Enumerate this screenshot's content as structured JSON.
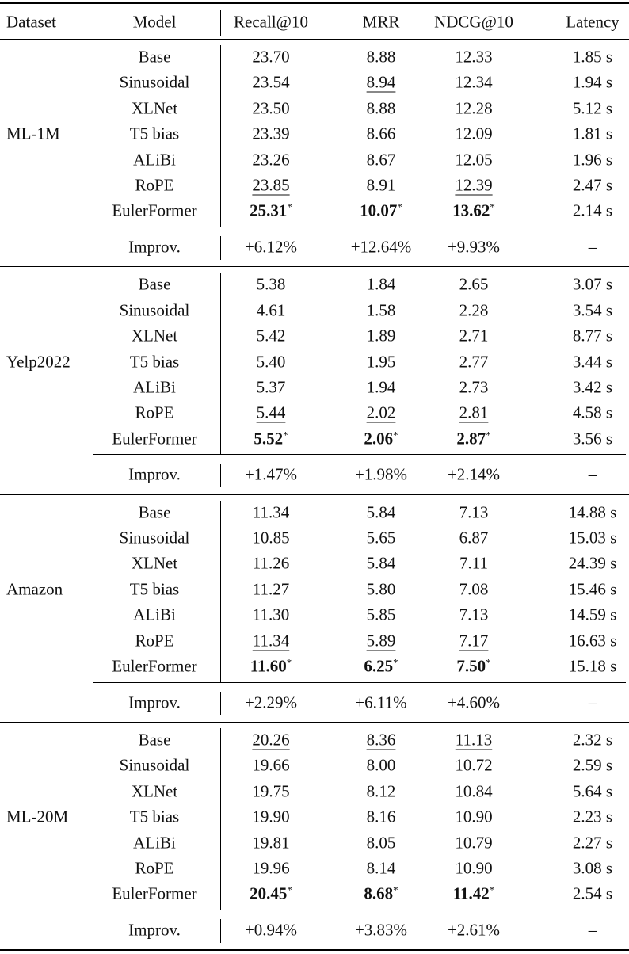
{
  "table": {
    "header": [
      "Dataset",
      "Model",
      "Recall@10",
      "MRR",
      "NDCG@10",
      "Latency"
    ],
    "groups": [
      {
        "dataset": "ML-1M",
        "rows": [
          [
            "Base",
            "23.70",
            "8.88",
            "12.33",
            "1.85 s"
          ],
          [
            "Sinusoidal",
            "23.54",
            {
              "text": "8.94",
              "underline": true
            },
            "12.34",
            "1.94 s"
          ],
          [
            "XLNet",
            "23.50",
            "8.88",
            "12.28",
            "5.12 s"
          ],
          [
            "T5 bias",
            "23.39",
            "8.66",
            "12.09",
            "1.81 s"
          ],
          [
            "ALiBi",
            "23.26",
            "8.67",
            "12.05",
            "1.96 s"
          ],
          [
            "RoPE",
            {
              "text": "23.85",
              "underline": true
            },
            "8.91",
            {
              "text": "12.39",
              "underline": true
            },
            "2.47 s"
          ],
          [
            "EulerFormer",
            {
              "text": "25.31",
              "bold": true,
              "mark": "*"
            },
            {
              "text": "10.07",
              "bold": true,
              "mark": "*"
            },
            {
              "text": "13.62",
              "bold": true,
              "mark": "*"
            },
            "2.14 s"
          ]
        ],
        "improv": [
          "Improv.",
          "+6.12%",
          "+12.64%",
          "+9.93%",
          "–"
        ]
      },
      {
        "dataset": "Yelp2022",
        "rows": [
          [
            "Base",
            "5.38",
            "1.84",
            "2.65",
            "3.07 s"
          ],
          [
            "Sinusoidal",
            "4.61",
            "1.58",
            "2.28",
            "3.54 s"
          ],
          [
            "XLNet",
            "5.42",
            "1.89",
            "2.71",
            "8.77 s"
          ],
          [
            "T5 bias",
            "5.40",
            "1.95",
            "2.77",
            "3.44 s"
          ],
          [
            "ALiBi",
            "5.37",
            "1.94",
            "2.73",
            "3.42 s"
          ],
          [
            "RoPE",
            {
              "text": "5.44",
              "underline": true
            },
            {
              "text": "2.02",
              "underline": true
            },
            {
              "text": "2.81",
              "underline": true
            },
            "4.58 s"
          ],
          [
            "EulerFormer",
            {
              "text": "5.52",
              "bold": true,
              "mark": "*"
            },
            {
              "text": "2.06",
              "bold": true,
              "mark": "*"
            },
            {
              "text": "2.87",
              "bold": true,
              "mark": "*"
            },
            "3.56 s"
          ]
        ],
        "improv": [
          "Improv.",
          "+1.47%",
          "+1.98%",
          "+2.14%",
          "–"
        ]
      },
      {
        "dataset": "Amazon",
        "rows": [
          [
            "Base",
            "11.34",
            "5.84",
            "7.13",
            "14.88 s"
          ],
          [
            "Sinusoidal",
            "10.85",
            "5.65",
            "6.87",
            "15.03 s"
          ],
          [
            "XLNet",
            "11.26",
            "5.84",
            "7.11",
            "24.39 s"
          ],
          [
            "T5 bias",
            "11.27",
            "5.80",
            "7.08",
            "15.46 s"
          ],
          [
            "ALiBi",
            "11.30",
            "5.85",
            "7.13",
            "14.59 s"
          ],
          [
            "RoPE",
            {
              "text": "11.34",
              "underline": true
            },
            {
              "text": "5.89",
              "underline": true
            },
            {
              "text": "7.17",
              "underline": true
            },
            "16.63 s"
          ],
          [
            "EulerFormer",
            {
              "text": "11.60",
              "bold": true,
              "mark": "*"
            },
            {
              "text": "6.25",
              "bold": true,
              "mark": "*"
            },
            {
              "text": "7.50",
              "bold": true,
              "mark": "*"
            },
            "15.18 s"
          ]
        ],
        "improv": [
          "Improv.",
          "+2.29%",
          "+6.11%",
          "+4.60%",
          "–"
        ]
      },
      {
        "dataset": "ML-20M",
        "rows": [
          [
            "Base",
            {
              "text": "20.26",
              "underline": true
            },
            {
              "text": "8.36",
              "underline": true
            },
            {
              "text": "11.13",
              "underline": true
            },
            "2.32 s"
          ],
          [
            "Sinusoidal",
            "19.66",
            "8.00",
            "10.72",
            "2.59 s"
          ],
          [
            "XLNet",
            "19.75",
            "8.12",
            "10.84",
            "5.64 s"
          ],
          [
            "T5 bias",
            "19.90",
            "8.16",
            "10.90",
            "2.23 s"
          ],
          [
            "ALiBi",
            "19.81",
            "8.05",
            "10.79",
            "2.27 s"
          ],
          [
            "RoPE",
            "19.96",
            "8.14",
            "10.90",
            "3.08 s"
          ],
          [
            "EulerFormer",
            {
              "text": "20.45",
              "bold": true,
              "mark": "*"
            },
            {
              "text": "8.68",
              "bold": true,
              "mark": "*"
            },
            {
              "text": "11.42",
              "bold": true,
              "mark": "*"
            },
            "2.54 s"
          ]
        ],
        "improv": [
          "Improv.",
          "+0.94%",
          "+3.83%",
          "+2.61%",
          "–"
        ]
      }
    ]
  }
}
